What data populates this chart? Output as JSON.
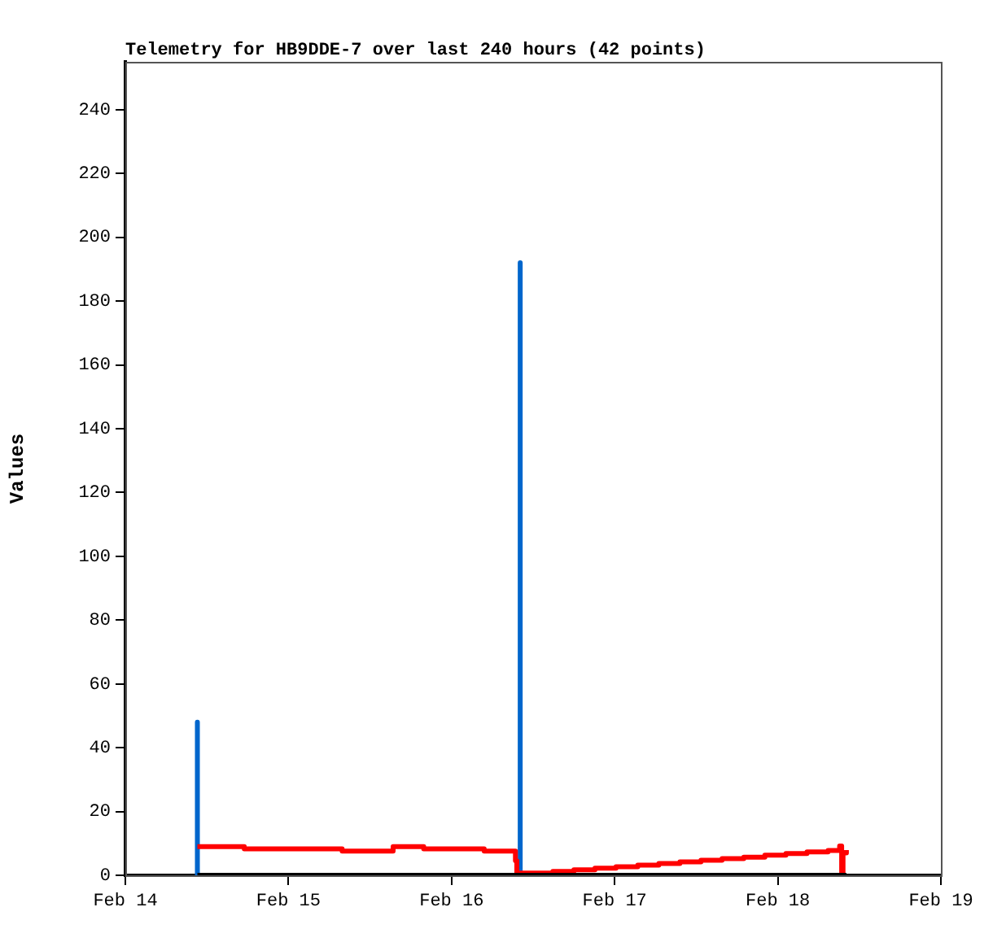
{
  "chart_data": {
    "type": "step",
    "title": "Telemetry for HB9DDE-7 over last 240 hours (42 points)",
    "ylabel": "Values",
    "series": [
      {
        "type": "line",
        "color": "#0066cc",
        "x": [
          "--02-14T10:36",
          "--02-14T10:36",
          "--02-14T10:36",
          "--02-16T10:06",
          "--02-16T10:06",
          "--02-16T10:06"
        ],
        "values": [
          0,
          48,
          0,
          0,
          192,
          0
        ]
      },
      {
        "type": "step",
        "color": "#ff0000",
        "x": [
          "--02-14T10:36",
          "--02-14T17:30",
          "--02-15T07:54",
          "--02-15T15:24",
          "--02-15T19:54",
          "--02-16T04:48",
          "--02-16T09:24",
          "--02-16T09:36",
          "--02-16T14:54",
          "--02-16T18:00",
          "--02-16T21:06",
          "--02-17T00:12",
          "--02-17T03:24",
          "--02-17T06:30",
          "--02-17T09:36",
          "--02-17T12:42",
          "--02-17T15:48",
          "--02-17T19:00",
          "--02-17T22:06",
          "--02-18T01:12",
          "--02-18T04:18",
          "--02-18T07:24",
          "--02-18T09:06",
          "--02-18T09:24",
          "--02-18T09:36",
          "--02-18T10:06"
        ],
        "values": [
          9.0,
          8.3,
          7.6,
          9.0,
          8.3,
          7.6,
          4.6,
          0.7,
          1.2,
          1.7,
          2.2,
          2.7,
          3.2,
          3.7,
          4.2,
          4.7,
          5.2,
          5.7,
          6.3,
          6.8,
          7.3,
          7.8,
          9.2,
          0.7,
          7.0,
          7.9
        ]
      },
      {
        "type": "line",
        "color": "#000000",
        "x": [
          "--02-14T10:36",
          "--02-18T10:06"
        ],
        "values": [
          0,
          0
        ]
      }
    ],
    "xlim": [
      "--02-14",
      "--02-19"
    ],
    "xticks": [
      {
        "value": "--02-14",
        "label": "Feb 14"
      },
      {
        "value": "--02-15",
        "label": "Feb 15"
      },
      {
        "value": "--02-16",
        "label": "Feb 16"
      },
      {
        "value": "--02-17",
        "label": "Feb 17"
      },
      {
        "value": "--02-18",
        "label": "Feb 18"
      },
      {
        "value": "--02-19",
        "label": "Feb 19"
      }
    ],
    "ylim": [
      0,
      255
    ],
    "yticks": [
      0,
      20,
      40,
      60,
      80,
      100,
      120,
      140,
      160,
      180,
      200,
      220,
      240
    ],
    "grid": false,
    "legend": false
  }
}
